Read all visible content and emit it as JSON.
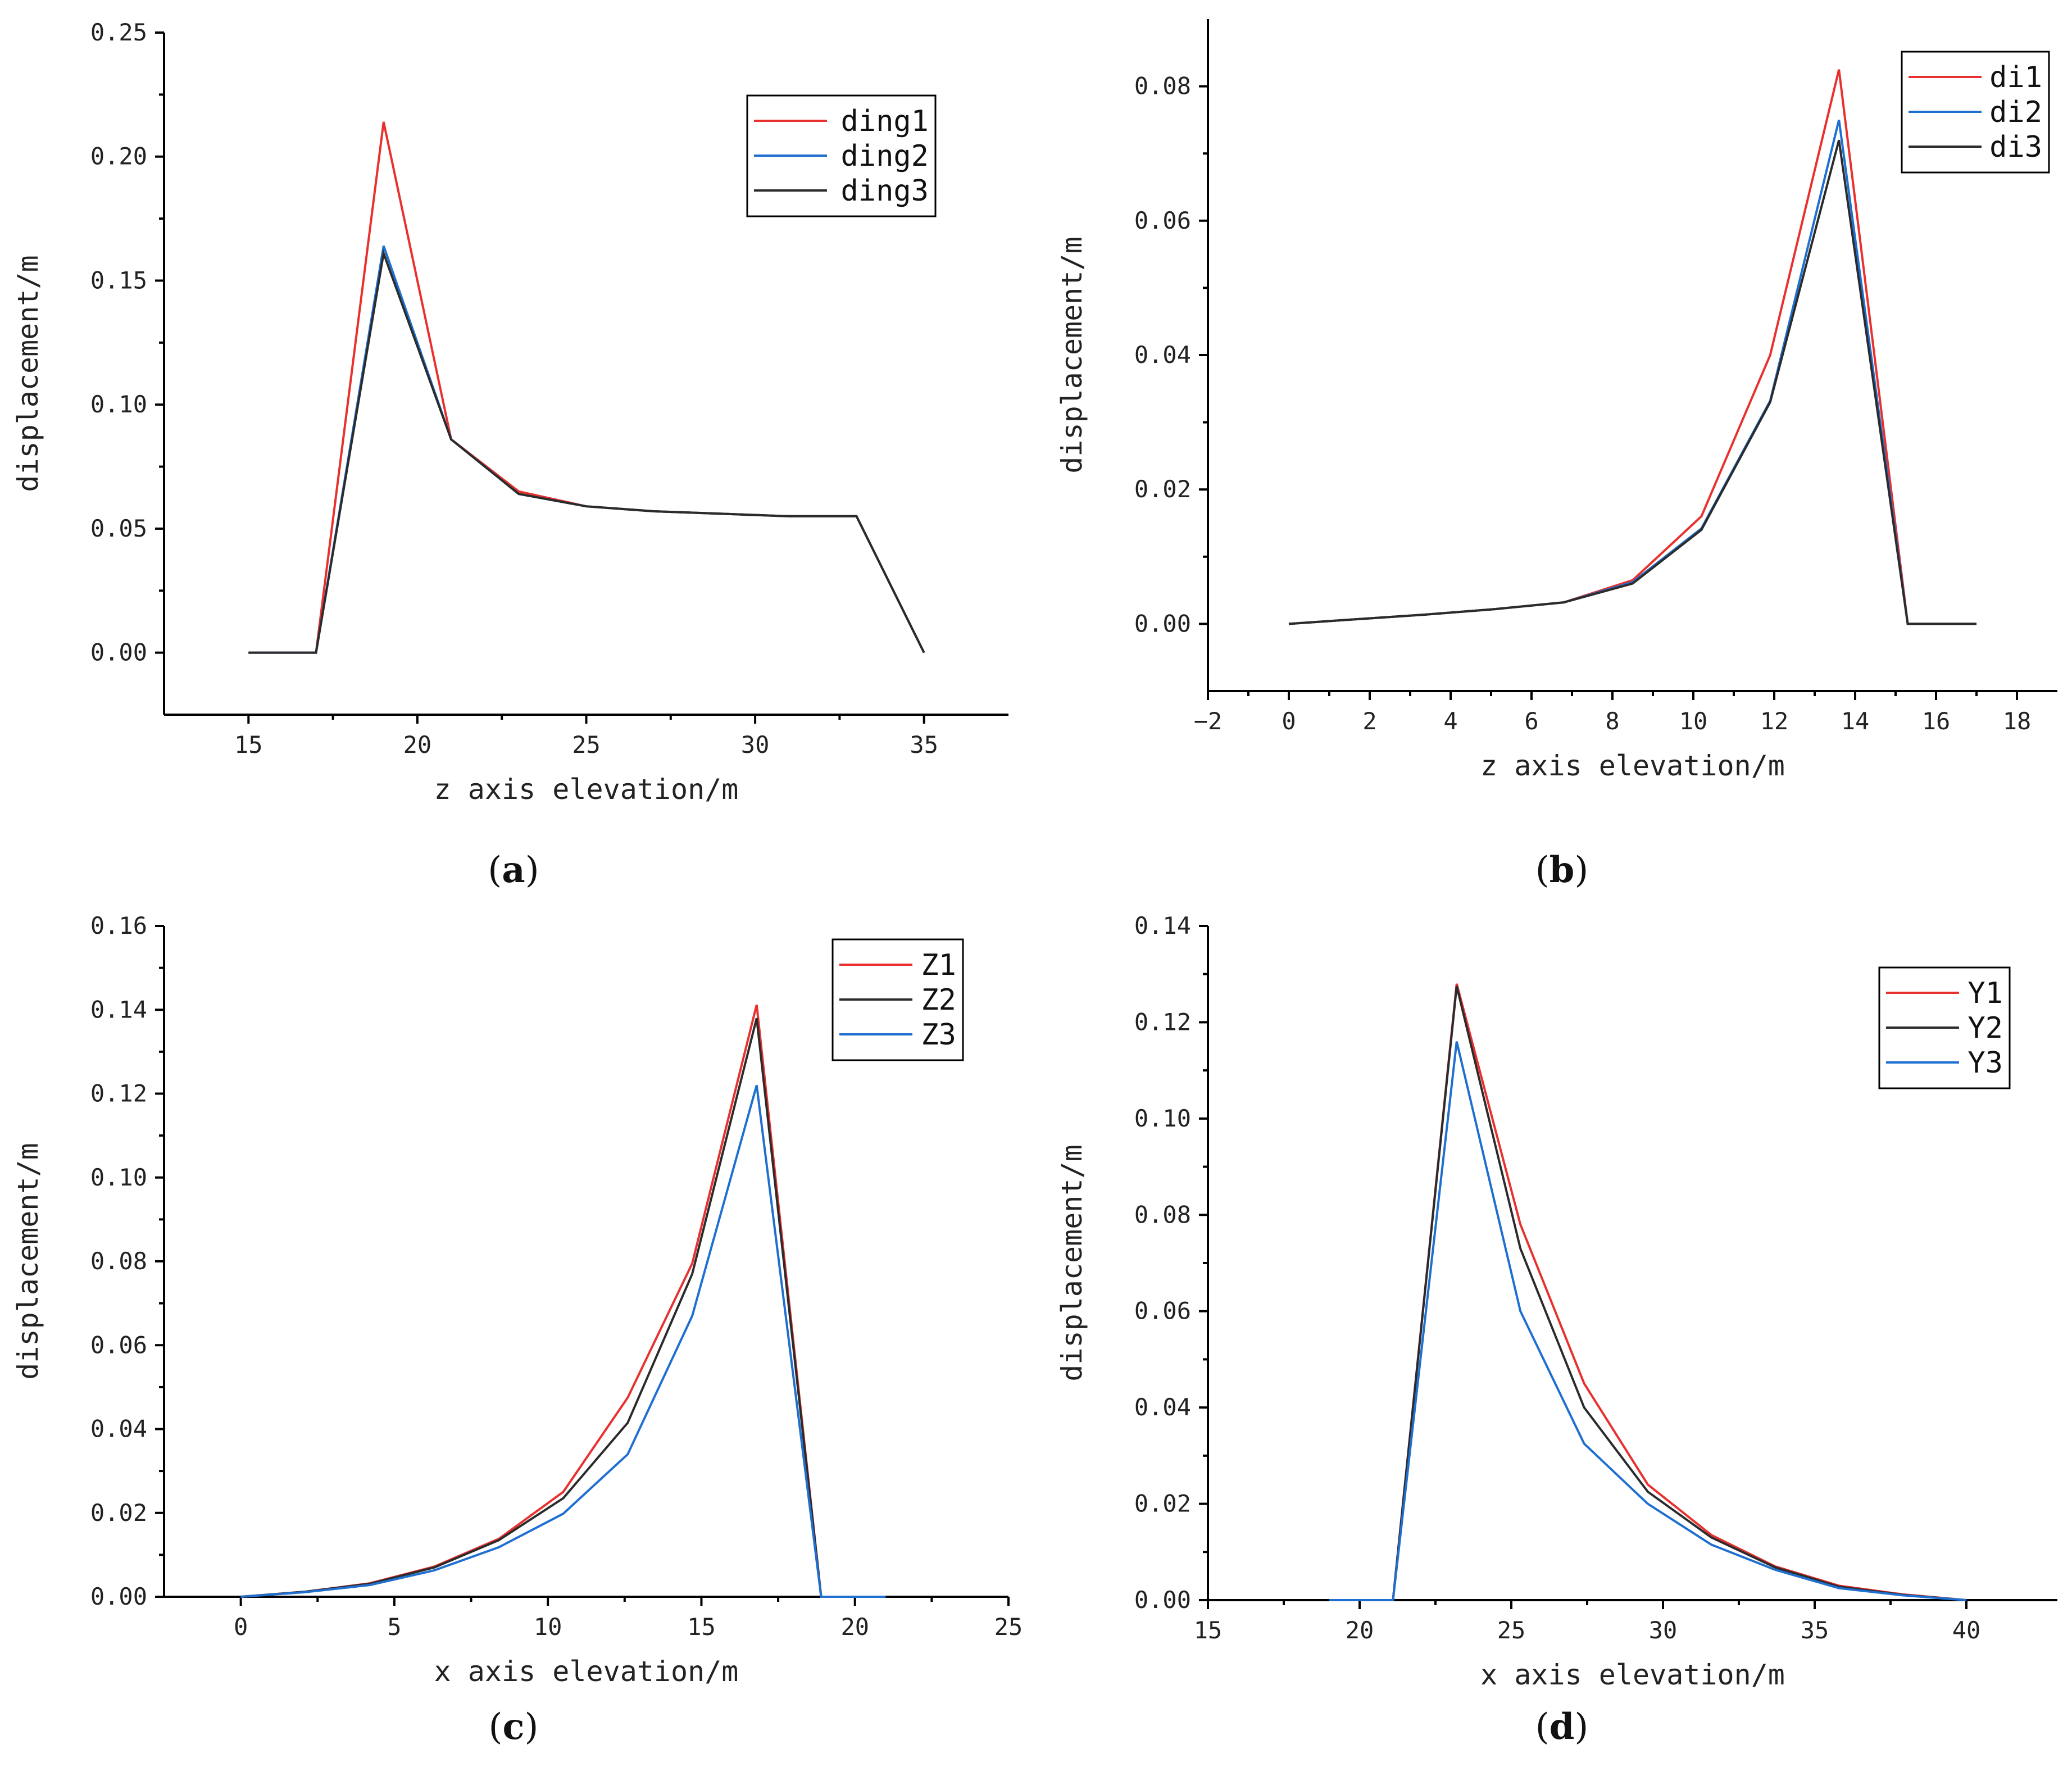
{
  "chart_data": [
    {
      "type": "line",
      "panel": "(a)",
      "xlabel": "z axis elevation/m",
      "ylabel": "displacement/m",
      "xlim": [
        12.5,
        37.5
      ],
      "ylim": [
        -0.025,
        0.25
      ],
      "xticks": [
        15,
        20,
        25,
        30,
        35
      ],
      "xtick_labels": [
        "15",
        "20",
        "25",
        "30",
        "35"
      ],
      "yticks": [
        0.0,
        0.05,
        0.1,
        0.15,
        0.2,
        0.25
      ],
      "ytick_labels": [
        "0.00",
        "0.05",
        "0.10",
        "0.15",
        "0.20",
        "0.25"
      ],
      "legend_position": "top-right",
      "series": [
        {
          "name": "ding1",
          "color": "#e8312f",
          "x": [
            15,
            17,
            19,
            21,
            23,
            25,
            27,
            29,
            31,
            33,
            35
          ],
          "y": [
            0.0,
            0.0,
            0.214,
            0.086,
            0.065,
            0.059,
            0.057,
            0.056,
            0.055,
            0.055,
            0.0
          ]
        },
        {
          "name": "ding2",
          "color": "#1f6fd1",
          "x": [
            15,
            17,
            19,
            21,
            23,
            25,
            27,
            29,
            31,
            33,
            35
          ],
          "y": [
            0.0,
            0.0,
            0.164,
            0.086,
            0.064,
            0.059,
            0.057,
            0.056,
            0.055,
            0.055,
            0.0
          ]
        },
        {
          "name": "ding3",
          "color": "#2b2b2b",
          "x": [
            15,
            17,
            19,
            21,
            23,
            25,
            27,
            29,
            31,
            33,
            35
          ],
          "y": [
            0.0,
            0.0,
            0.161,
            0.086,
            0.064,
            0.059,
            0.057,
            0.056,
            0.055,
            0.055,
            0.0
          ]
        }
      ]
    },
    {
      "type": "line",
      "panel": "(b)",
      "xlabel": "z axis elevation/m",
      "ylabel": "displacement/m",
      "xlim": [
        -2,
        19
      ],
      "ylim": [
        -0.01,
        0.09
      ],
      "xticks": [
        -2,
        0,
        2,
        4,
        6,
        8,
        10,
        12,
        14,
        16,
        18
      ],
      "xtick_labels": [
        "−2",
        "0",
        "2",
        "4",
        "6",
        "8",
        "10",
        "12",
        "14",
        "16",
        "18"
      ],
      "yticks": [
        0.0,
        0.02,
        0.04,
        0.06,
        0.08
      ],
      "ytick_labels": [
        "0.00",
        "0.02",
        "0.04",
        "0.06",
        "0.08"
      ],
      "legend_position": "top-right",
      "series": [
        {
          "name": "di1",
          "color": "#e8312f",
          "x": [
            0,
            1.7,
            3.4,
            5.1,
            6.8,
            8.5,
            10.2,
            11.9,
            13.6,
            15.3,
            17
          ],
          "y": [
            0.0,
            0.0007,
            0.0014,
            0.0022,
            0.0032,
            0.0065,
            0.016,
            0.04,
            0.0825,
            0.0,
            0.0
          ]
        },
        {
          "name": "di2",
          "color": "#1f6fd1",
          "x": [
            0,
            1.7,
            3.4,
            5.1,
            6.8,
            8.5,
            10.2,
            11.9,
            13.6,
            15.3,
            17
          ],
          "y": [
            0.0,
            0.0007,
            0.0014,
            0.0022,
            0.0032,
            0.0062,
            0.0142,
            0.0332,
            0.075,
            0.0,
            0.0
          ]
        },
        {
          "name": "di3",
          "color": "#2b2b2b",
          "x": [
            0,
            1.7,
            3.4,
            5.1,
            6.8,
            8.5,
            10.2,
            11.9,
            13.6,
            15.3,
            17
          ],
          "y": [
            0.0,
            0.0007,
            0.0014,
            0.0022,
            0.0032,
            0.006,
            0.014,
            0.033,
            0.072,
            0.0,
            0.0
          ]
        }
      ]
    },
    {
      "type": "line",
      "panel": "(c)",
      "xlabel": "x axis elevation/m",
      "ylabel": "displacement/m",
      "xlim": [
        -2.5,
        25
      ],
      "ylim": [
        0.0,
        0.16
      ],
      "xticks": [
        0,
        5,
        10,
        15,
        20,
        25
      ],
      "xtick_labels": [
        "0",
        "5",
        "10",
        "15",
        "20",
        "25"
      ],
      "yticks": [
        0.0,
        0.02,
        0.04,
        0.06,
        0.08,
        0.1,
        0.12,
        0.14,
        0.16
      ],
      "ytick_labels": [
        "0.00",
        "0.02",
        "0.04",
        "0.06",
        "0.08",
        "0.10",
        "0.12",
        "0.14",
        "0.16"
      ],
      "legend_position": "top-right",
      "series": [
        {
          "name": "Z1",
          "color": "#e8312f",
          "x": [
            0,
            2.1,
            4.2,
            6.3,
            8.4,
            10.5,
            12.6,
            14.7,
            16.8,
            18.9,
            21
          ],
          "y": [
            0.0,
            0.0012,
            0.0032,
            0.0072,
            0.0138,
            0.025,
            0.0475,
            0.0795,
            0.1412,
            0.0,
            0.0
          ]
        },
        {
          "name": "Z2",
          "color": "#2b2b2b",
          "x": [
            0,
            2.1,
            4.2,
            6.3,
            8.4,
            10.5,
            12.6,
            14.7,
            16.8,
            18.9,
            21
          ],
          "y": [
            0.0,
            0.0012,
            0.0031,
            0.007,
            0.0135,
            0.0235,
            0.0415,
            0.077,
            0.138,
            0.0,
            0.0
          ]
        },
        {
          "name": "Z3",
          "color": "#1f6fd1",
          "x": [
            0,
            2.1,
            4.2,
            6.3,
            8.4,
            10.5,
            12.6,
            14.7,
            16.8,
            18.9,
            21
          ],
          "y": [
            0.0,
            0.0011,
            0.0028,
            0.0063,
            0.0118,
            0.0198,
            0.034,
            0.067,
            0.122,
            0.0,
            0.0
          ]
        }
      ]
    },
    {
      "type": "line",
      "panel": "(d)",
      "xlabel": "x axis elevation/m",
      "ylabel": "displacement/m",
      "xlim": [
        15,
        43
      ],
      "ylim": [
        0.0,
        0.14
      ],
      "xticks": [
        15,
        20,
        25,
        30,
        35,
        40
      ],
      "xtick_labels": [
        "15",
        "20",
        "25",
        "30",
        "35",
        "40"
      ],
      "yticks": [
        0.0,
        0.02,
        0.04,
        0.06,
        0.08,
        0.1,
        0.12,
        0.14
      ],
      "ytick_labels": [
        "0.00",
        "0.02",
        "0.04",
        "0.06",
        "0.08",
        "0.10",
        "0.12",
        "0.14"
      ],
      "legend_position": "top-right",
      "series": [
        {
          "name": "Y1",
          "color": "#e8312f",
          "x": [
            19,
            21.1,
            23.2,
            25.3,
            27.4,
            29.5,
            31.6,
            33.7,
            35.8,
            37.9,
            40
          ],
          "y": [
            0.0,
            0.0,
            0.128,
            0.078,
            0.045,
            0.024,
            0.0135,
            0.007,
            0.003,
            0.0012,
            0.0
          ]
        },
        {
          "name": "Y2",
          "color": "#2b2b2b",
          "x": [
            19,
            21.1,
            23.2,
            25.3,
            27.4,
            29.5,
            31.6,
            33.7,
            35.8,
            37.9,
            40
          ],
          "y": [
            0.0,
            0.0,
            0.1275,
            0.073,
            0.04,
            0.0225,
            0.013,
            0.0068,
            0.0028,
            0.0011,
            0.0
          ]
        },
        {
          "name": "Y3",
          "color": "#1f6fd1",
          "x": [
            19,
            21.1,
            23.2,
            25.3,
            27.4,
            29.5,
            31.6,
            33.7,
            35.8,
            37.9,
            40
          ],
          "y": [
            0.0,
            0.0,
            0.116,
            0.06,
            0.0325,
            0.02,
            0.0115,
            0.0063,
            0.0025,
            0.001,
            0.0
          ]
        }
      ]
    }
  ]
}
